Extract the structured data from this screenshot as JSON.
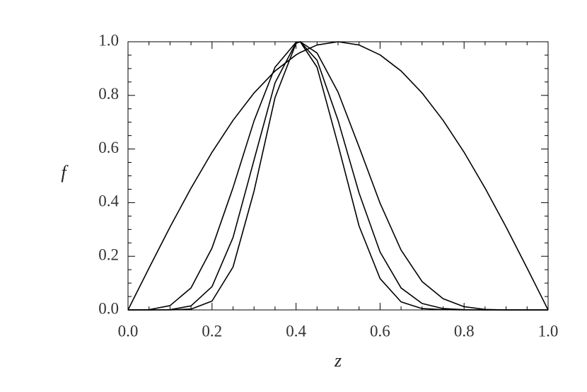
{
  "chart_data": {
    "type": "line",
    "x_label": "z",
    "y_label": "f",
    "x": [
      0,
      0.05,
      0.1,
      0.15,
      0.2,
      0.25,
      0.3,
      0.35,
      0.4,
      0.41,
      0.45,
      0.5,
      0.55,
      0.6,
      0.65,
      0.7,
      0.75,
      0.8,
      0.85,
      0.9,
      0.95,
      1.0
    ],
    "series": [
      {
        "color": "#000000",
        "values": [
          0,
          0.156,
          0.309,
          0.454,
          0.588,
          0.707,
          0.809,
          0.891,
          0.951,
          0.96,
          0.988,
          1.0,
          0.988,
          0.951,
          0.891,
          0.809,
          0.707,
          0.588,
          0.454,
          0.309,
          0.156,
          0
        ]
      },
      {
        "color": "#000000",
        "values": [
          0,
          0.001,
          0.016,
          0.082,
          0.231,
          0.456,
          0.705,
          0.905,
          0.998,
          1.0,
          0.958,
          0.812,
          0.608,
          0.398,
          0.223,
          0.106,
          0.042,
          0.012,
          0.002,
          0,
          0,
          0
        ]
      },
      {
        "color": "#000000",
        "values": [
          0,
          0,
          0.001,
          0.015,
          0.087,
          0.27,
          0.559,
          0.847,
          0.996,
          1.0,
          0.931,
          0.707,
          0.436,
          0.216,
          0.082,
          0.024,
          0.005,
          0.001,
          0,
          0,
          0,
          0
        ]
      },
      {
        "color": "#000000",
        "values": [
          0,
          0,
          0,
          0.003,
          0.033,
          0.16,
          0.443,
          0.792,
          0.994,
          1.0,
          0.905,
          0.616,
          0.313,
          0.117,
          0.03,
          0.005,
          0.001,
          0,
          0,
          0,
          0,
          0
        ]
      }
    ],
    "xlim": [
      0,
      1.0
    ],
    "ylim": [
      0,
      1.0
    ],
    "xticks": [
      {
        "value": 0,
        "label": "0.0"
      },
      {
        "value": 0.2,
        "label": "0.2"
      },
      {
        "value": 0.4,
        "label": "0.4"
      },
      {
        "value": 0.6,
        "label": "0.6"
      },
      {
        "value": 0.8,
        "label": "0.8"
      },
      {
        "value": 1.0,
        "label": "1.0"
      }
    ],
    "yticks": [
      {
        "value": 0,
        "label": "0.0"
      },
      {
        "value": 0.2,
        "label": "0.2"
      },
      {
        "value": 0.4,
        "label": "0.4"
      },
      {
        "value": 0.6,
        "label": "0.6"
      },
      {
        "value": 0.8,
        "label": "0.8"
      },
      {
        "value": 1.0,
        "label": "1.0"
      }
    ],
    "xminorticks": [
      0.05,
      0.1,
      0.15,
      0.25,
      0.3,
      0.35,
      0.45,
      0.5,
      0.55,
      0.65,
      0.7,
      0.75,
      0.85,
      0.9,
      0.95
    ],
    "yminorticks": [
      0.05,
      0.1,
      0.15,
      0.25,
      0.3,
      0.35,
      0.45,
      0.5,
      0.55,
      0.65,
      0.7,
      0.75,
      0.85,
      0.9,
      0.95
    ],
    "grid": false
  }
}
